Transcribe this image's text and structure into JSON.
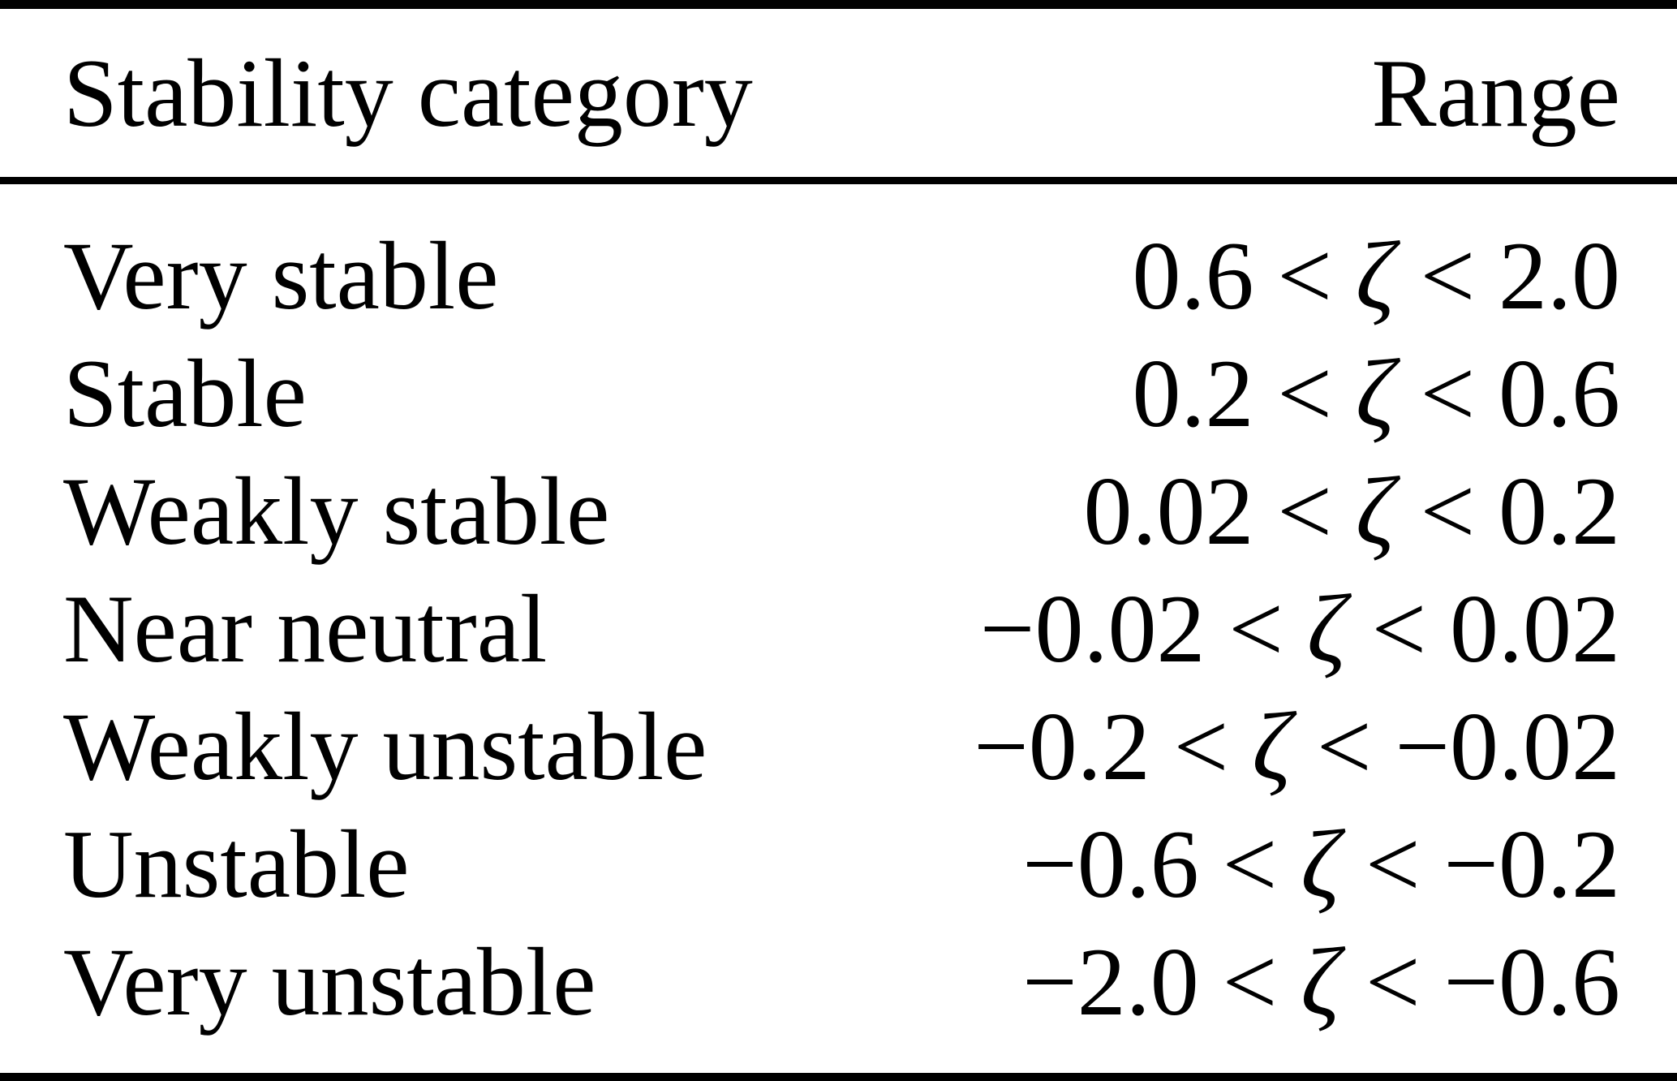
{
  "colors": {
    "text": "#000000",
    "background": "#ffffff",
    "rule": "#000000"
  },
  "table": {
    "header": {
      "category": "Stability category",
      "range": "Range"
    },
    "op": "<",
    "symbol": "ζ",
    "rows": [
      {
        "category": "Very stable",
        "low": "0.6",
        "high": "2.0"
      },
      {
        "category": "Stable",
        "low": "0.2",
        "high": "0.6"
      },
      {
        "category": "Weakly stable",
        "low": "0.02",
        "high": "0.2"
      },
      {
        "category": "Near neutral",
        "low": "−0.02",
        "high": "0.02"
      },
      {
        "category": "Weakly unstable",
        "low": "−0.2",
        "high": "−0.02"
      },
      {
        "category": "Unstable",
        "low": "−0.6",
        "high": "−0.2"
      },
      {
        "category": "Very unstable",
        "low": "−2.0",
        "high": "−0.6"
      }
    ]
  }
}
